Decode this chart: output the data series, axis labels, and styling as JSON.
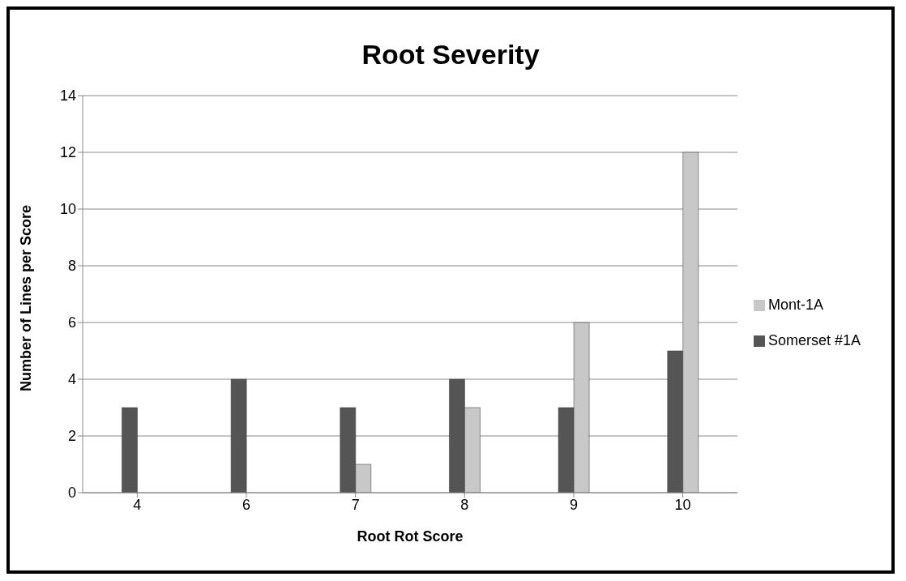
{
  "chart_data": {
    "type": "bar",
    "title": "Root Severity",
    "xlabel": "Root Rot Score",
    "ylabel": "Number of Lines per Score",
    "categories": [
      "4",
      "6",
      "7",
      "8",
      "9",
      "10"
    ],
    "series": [
      {
        "name": "Somerset #1A",
        "color": "#555555",
        "values": [
          3,
          4,
          3,
          4,
          3,
          5
        ]
      },
      {
        "name": "Mont-1A",
        "color": "#c8c8c8",
        "values": [
          null,
          null,
          1,
          3,
          6,
          12
        ]
      }
    ],
    "ylim": [
      0,
      14
    ],
    "yticks": [
      0,
      2,
      4,
      6,
      8,
      10,
      12,
      14
    ],
    "grid": "y",
    "legend": "right"
  }
}
